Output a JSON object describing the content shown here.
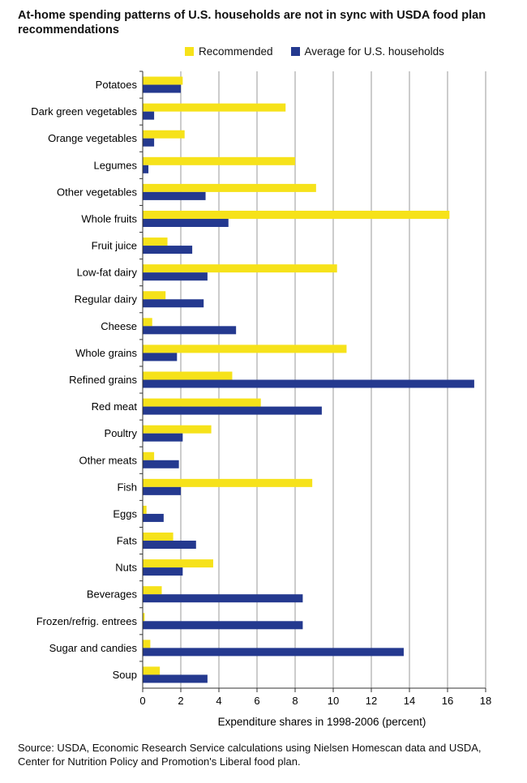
{
  "title": "At-home spending patterns of U.S. households are not in sync with USDA food plan recommendations",
  "source_note": "Source: USDA, Economic Research Service calculations using Nielsen Homescan data and USDA, Center for Nutrition Policy and Promotion's Liberal food plan.",
  "colors": {
    "recommended": "#f6e21a",
    "average": "#24398f",
    "grid": "#9a9a9a",
    "axis": "#333333"
  },
  "chart_data": {
    "type": "bar",
    "orientation": "horizontal",
    "title": "At-home spending patterns of U.S. households are not in sync with USDA food plan recommendations",
    "xlabel": "Expenditure shares in 1998-2006 (percent)",
    "ylabel": "",
    "xlim": [
      0,
      18
    ],
    "xticks": [
      0,
      2,
      4,
      6,
      8,
      10,
      12,
      14,
      16,
      18
    ],
    "grid": "vertical",
    "legend_position": "top",
    "categories": [
      "Potatoes",
      "Dark green vegetables",
      "Orange vegetables",
      "Legumes",
      "Other vegetables",
      "Whole fruits",
      "Fruit juice",
      "Low-fat dairy",
      "Regular dairy",
      "Cheese",
      "Whole grains",
      "Refined grains",
      "Red meat",
      "Poultry",
      "Other meats",
      "Fish",
      "Eggs",
      "Fats",
      "Nuts",
      "Beverages",
      "Frozen/refrig. entrees",
      "Sugar and candies",
      "Soup"
    ],
    "series": [
      {
        "name": "Recommended",
        "color": "#f6e21a",
        "values": [
          2.1,
          7.5,
          2.2,
          8.0,
          9.1,
          16.1,
          1.3,
          10.2,
          1.2,
          0.5,
          10.7,
          4.7,
          6.2,
          3.6,
          0.6,
          8.9,
          0.2,
          1.6,
          3.7,
          1.0,
          0.1,
          0.4,
          0.9
        ]
      },
      {
        "name": "Average for U.S. households",
        "color": "#24398f",
        "values": [
          2.0,
          0.6,
          0.6,
          0.3,
          3.3,
          4.5,
          2.6,
          3.4,
          3.2,
          4.9,
          1.8,
          17.4,
          9.4,
          2.1,
          1.9,
          2.0,
          1.1,
          2.8,
          2.1,
          8.4,
          8.4,
          13.7,
          3.4
        ]
      }
    ]
  }
}
